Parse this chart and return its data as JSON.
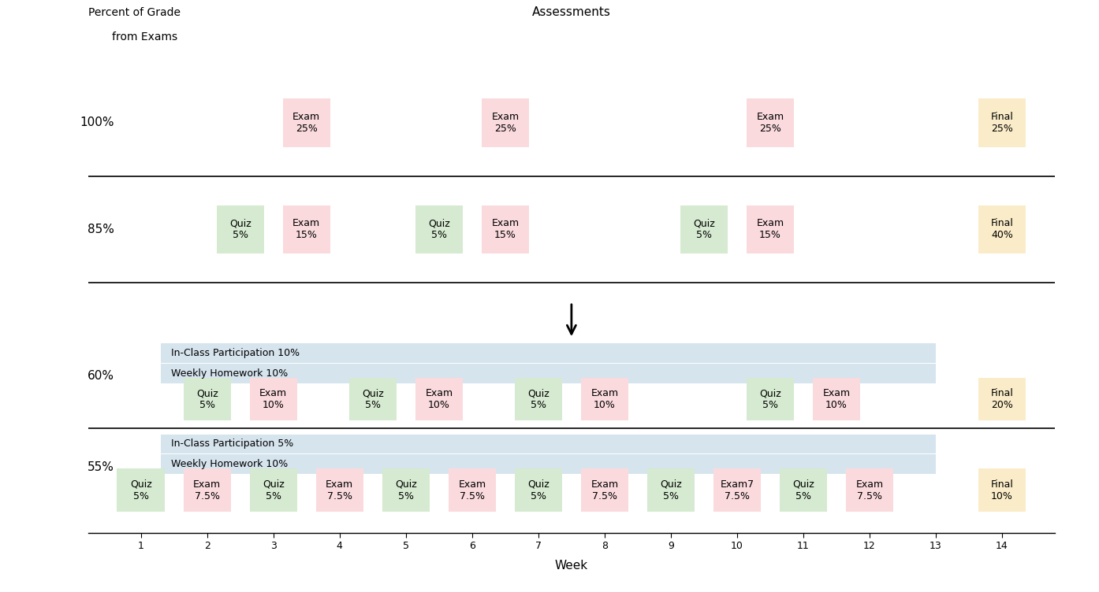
{
  "colors": {
    "exam": "#FADADD",
    "quiz": "#D5EAD0",
    "final": "#FAECC8",
    "participation": "#D6E4EE",
    "homework": "#D6E4EE"
  },
  "row100": {
    "label": "100%",
    "items": [
      {
        "type": "exam",
        "label": "Exam\n25%",
        "week": 3.5
      },
      {
        "type": "exam",
        "label": "Exam\n25%",
        "week": 6.5
      },
      {
        "type": "exam",
        "label": "Exam\n25%",
        "week": 10.5
      },
      {
        "type": "final",
        "label": "Final\n25%",
        "week": 14.0
      }
    ]
  },
  "row85": {
    "label": "85%",
    "items": [
      {
        "type": "quiz",
        "label": "Quiz\n5%",
        "week": 2.5
      },
      {
        "type": "exam",
        "label": "Exam\n15%",
        "week": 3.5
      },
      {
        "type": "quiz",
        "label": "Quiz\n5%",
        "week": 5.5
      },
      {
        "type": "exam",
        "label": "Exam\n15%",
        "week": 6.5
      },
      {
        "type": "quiz",
        "label": "Quiz\n5%",
        "week": 9.5
      },
      {
        "type": "exam",
        "label": "Exam\n15%",
        "week": 10.5
      },
      {
        "type": "final",
        "label": "Final\n40%",
        "week": 14.0
      }
    ]
  },
  "row60": {
    "label": "60%",
    "band1": "In-Class Participation 10%",
    "band2": "Weekly Homework 10%",
    "items": [
      {
        "type": "quiz",
        "label": "Quiz\n5%",
        "week": 2.0
      },
      {
        "type": "exam",
        "label": "Exam\n10%",
        "week": 3.0
      },
      {
        "type": "quiz",
        "label": "Quiz\n5%",
        "week": 4.5
      },
      {
        "type": "exam",
        "label": "Exam\n10%",
        "week": 5.5
      },
      {
        "type": "quiz",
        "label": "Quiz\n5%",
        "week": 7.0
      },
      {
        "type": "exam",
        "label": "Exam\n10%",
        "week": 8.0
      },
      {
        "type": "quiz",
        "label": "Quiz\n5%",
        "week": 10.5
      },
      {
        "type": "exam",
        "label": "Exam\n10%",
        "week": 11.5
      },
      {
        "type": "final",
        "label": "Final\n20%",
        "week": 14.0
      }
    ]
  },
  "row55": {
    "label": "55%",
    "band1": "In-Class Participation 5%",
    "band2": "Weekly Homework 10%",
    "items": [
      {
        "type": "quiz",
        "label": "Quiz\n5%",
        "week": 1.0
      },
      {
        "type": "exam",
        "label": "Exam\n7.5%",
        "week": 2.0
      },
      {
        "type": "quiz",
        "label": "Quiz\n5%",
        "week": 3.0
      },
      {
        "type": "exam",
        "label": "Exam\n7.5%",
        "week": 4.0
      },
      {
        "type": "quiz",
        "label": "Quiz\n5%",
        "week": 5.0
      },
      {
        "type": "exam",
        "label": "Exam\n7.5%",
        "week": 6.0
      },
      {
        "type": "quiz",
        "label": "Quiz\n5%",
        "week": 7.0
      },
      {
        "type": "exam",
        "label": "Exam\n7.5%",
        "week": 8.0
      },
      {
        "type": "quiz",
        "label": "Quiz\n5%",
        "week": 9.0
      },
      {
        "type": "exam",
        "label": "Exam7\n7.5%",
        "week": 10.0
      },
      {
        "type": "quiz",
        "label": "Quiz\n5%",
        "week": 11.0
      },
      {
        "type": "exam",
        "label": "Exam\n7.5%",
        "week": 12.0
      },
      {
        "type": "final",
        "label": "Final\n10%",
        "week": 14.0
      }
    ]
  }
}
